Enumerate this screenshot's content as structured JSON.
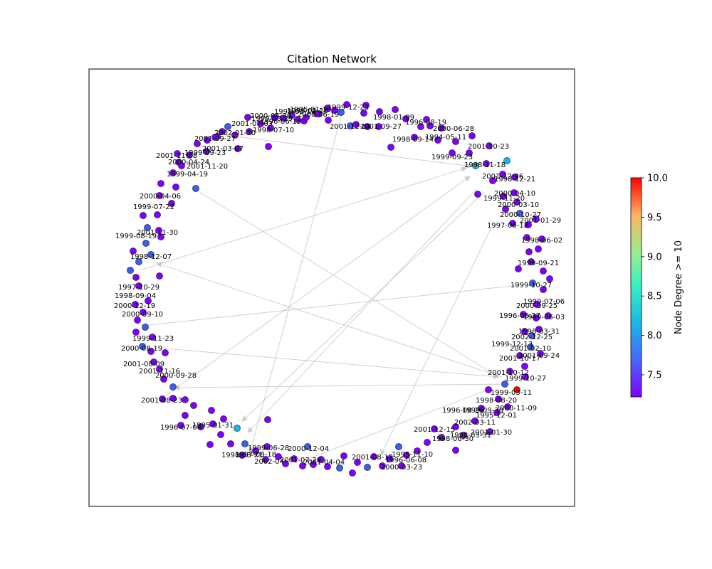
{
  "figure": {
    "title": "Citation Network",
    "colorbar_label": "Node Degree >= 10",
    "colorbar_ticks": [
      "7.5",
      "8.0",
      "8.5",
      "9.0",
      "9.5",
      "10.0"
    ],
    "colormap": "rainbow"
  },
  "colors": {
    "edge": "#bbbbbb",
    "node_outline": "#222222",
    "low": "#7f00ff",
    "mid_low": "#3a5ef2",
    "mid": "#16b8e6",
    "high": "#ff0000"
  },
  "network": {
    "labels": [
      "1999-12-23",
      "1998-03-19",
      "1999-02-26",
      "2000-04-30",
      "1999-08-29",
      "2000-06-19",
      "1995-01-18",
      "2001-07-03",
      "1996-06-15",
      "1998-07-10",
      "2001-12-04",
      "2001-09-27",
      "1998-01-09",
      "1996-08-19",
      "2000-06-28",
      "2001-09-27",
      "2002-01-30",
      "2001-03-07",
      "1999-09-23",
      "1998-09-14",
      "1994-05-11",
      "2001-10-23",
      "2001-11-08",
      "2000-04-24",
      "2001-11-20",
      "1999-09-23",
      "1998-11-18",
      "1999-04-19",
      "2001-12-06",
      "1998-12-21",
      "2000-04-06",
      "2000-04-10",
      "1999-11-20",
      "1999-07-22",
      "2000-03-10",
      "2000-10-27",
      "2001-01-29",
      "2001-11-30",
      "1999-08-19",
      "1997-06-18",
      "1998-06-02",
      "1998-12-07",
      "1999-09-21",
      "1997-10-29",
      "1999-10-27",
      "1998-09-04",
      "1999-07-06",
      "2000-12-19",
      "2000-09-25",
      "2000-09-10",
      "1996-08-27",
      "1999-06-03",
      "1999-11-23",
      "1998-03-31",
      "2002-12-25",
      "2000-08-19",
      "1999-12-13",
      "2001-02-10",
      "2001-08-09",
      "2001-09-24",
      "2001-11-16",
      "2001-10-17",
      "2000-09-28",
      "2001-10-12",
      "1999-10-27",
      "2001-08-23",
      "1999-03-11",
      "1998-08-20",
      "2000-11-09",
      "1996-08-26",
      "1999-09-30",
      "1995-12-01",
      "1996-07-04",
      "1995-01-31",
      "2002-03-11",
      "2001-12-15",
      "1998-06-30",
      "1998-03-31",
      "2001-01-30",
      "1999-06-28",
      "2000-12-04",
      "1998-08-21",
      "1997-08-18",
      "2002-04",
      "2001-07-20",
      "2001-04-04",
      "2001-08-12",
      "1995-11-10",
      "1996-06-08",
      "2000-03-23"
    ],
    "edge_count": 13,
    "node_count": 190
  }
}
